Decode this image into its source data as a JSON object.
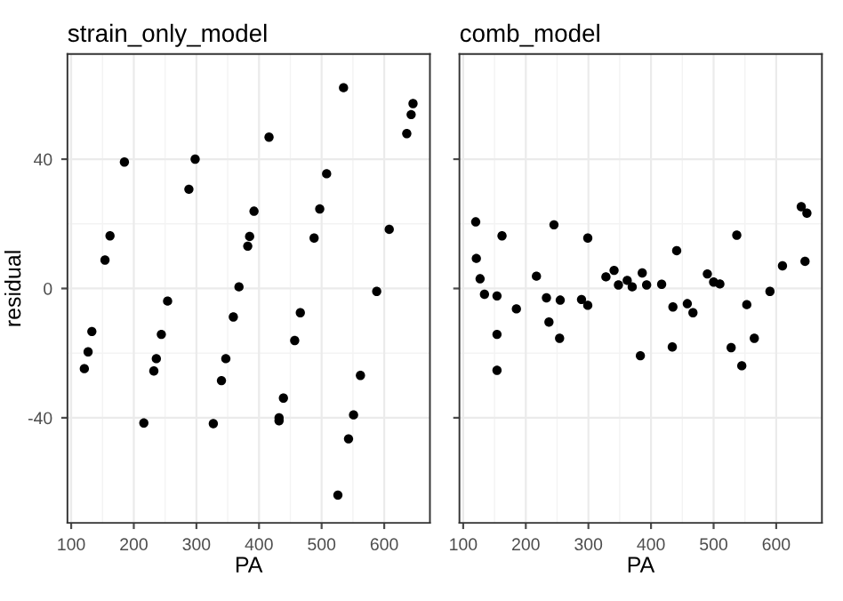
{
  "chart_data": [
    {
      "type": "scatter",
      "title": "strain_only_model",
      "xlabel": "PA",
      "ylabel": "residual",
      "xlim": [
        94,
        673
      ],
      "ylim": [
        -72.5,
        72.5
      ],
      "xticks": [
        100,
        200,
        300,
        400,
        500,
        600
      ],
      "yticks": [
        -40,
        0,
        40
      ],
      "grid": true,
      "marker": "circle",
      "series": [
        {
          "color": "#000000",
          "x": [
            535,
            646,
            643,
            636,
            416,
            185,
            298,
            508,
            288,
            392,
            497,
            162,
            385,
            382,
            488,
            608,
            154,
            368,
            588,
            254,
            466,
            133,
            359,
            244,
            457,
            127,
            236,
            347,
            121,
            232,
            562,
            340,
            439,
            216,
            327,
            432,
            432,
            551,
            543,
            526
          ],
          "values": [
            62.1,
            57.2,
            53.8,
            47.9,
            46.8,
            39.1,
            40,
            35.5,
            30.7,
            23.9,
            24.6,
            16.3,
            16.1,
            13.1,
            15.6,
            18.3,
            8.8,
            0.5,
            -0.9,
            -3.9,
            -7.5,
            -13.3,
            -8.8,
            -14.2,
            -16.1,
            -19.6,
            -21.7,
            -21.7,
            -24.8,
            -25.5,
            -26.9,
            -28.5,
            -33.9,
            -41.6,
            -41.8,
            -40,
            -40.9,
            -39.1,
            -46.5,
            -63.9
          ]
        }
      ]
    },
    {
      "type": "scatter",
      "title": "comb_model",
      "xlabel": "PA",
      "xlim": [
        94,
        673
      ],
      "ylim": [
        -72.5,
        72.5
      ],
      "xticks": [
        100,
        200,
        300,
        400,
        500,
        600
      ],
      "yticks": [
        -40,
        0,
        40
      ],
      "grid": true,
      "marker": "circle",
      "tick_labels": "x",
      "series": [
        {
          "color": "#000000",
          "x": [
            120,
            121,
            127,
            134,
            154,
            154,
            154,
            162,
            185,
            217,
            233,
            245,
            237,
            255,
            254,
            289,
            299,
            299,
            328,
            341,
            348,
            362,
            370,
            383,
            386,
            393,
            417,
            435,
            434,
            441,
            458,
            467,
            490,
            500,
            510,
            528,
            537,
            545,
            553,
            565,
            590,
            610,
            640,
            649,
            646
          ],
          "values": [
            20.6,
            9.3,
            3.0,
            -1.8,
            -2.3,
            -14.2,
            -25.3,
            16.3,
            -6.3,
            3.8,
            -2.9,
            19.7,
            -10.4,
            -3.6,
            -15.4,
            -3.4,
            15.6,
            -5.2,
            3.6,
            5.6,
            1.1,
            2.5,
            0.5,
            -20.8,
            4.8,
            1.1,
            1.3,
            -5.7,
            -18.1,
            11.7,
            -4.7,
            -7.5,
            4.5,
            2.0,
            1.4,
            -18.3,
            16.5,
            -23.9,
            -5.0,
            -15.4,
            -0.9,
            7.0,
            25.3,
            23.3,
            8.4
          ]
        }
      ]
    }
  ]
}
